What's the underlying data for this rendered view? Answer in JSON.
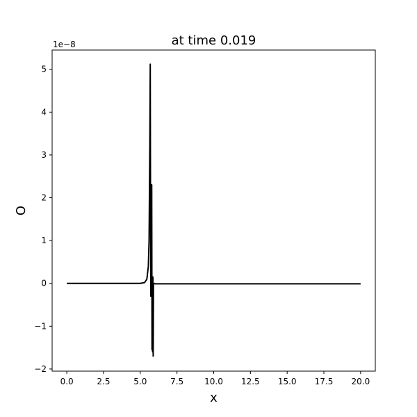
{
  "chart_data": {
    "type": "line",
    "title": "at time 0.019",
    "xlabel": "x",
    "ylabel": "O",
    "offset_label": "1e−8",
    "xlim": [
      -1.0,
      21.0
    ],
    "ylim": [
      -2.05,
      5.45
    ],
    "y_scale_exponent": -8,
    "xticks": [
      0.0,
      2.5,
      5.0,
      7.5,
      10.0,
      12.5,
      15.0,
      17.5,
      20.0
    ],
    "xtick_labels": [
      "0.0",
      "2.5",
      "5.0",
      "7.5",
      "10.0",
      "12.5",
      "15.0",
      "17.5",
      "20.0"
    ],
    "yticks": [
      -2,
      -1,
      0,
      1,
      2,
      3,
      4,
      5
    ],
    "ytick_labels": [
      "−2",
      "−1",
      "0",
      "1",
      "2",
      "3",
      "4",
      "5"
    ],
    "grid": false,
    "series": [
      {
        "color": "#000000",
        "x": [
          0.0,
          5.0,
          5.3,
          5.45,
          5.55,
          5.6,
          5.65,
          5.68,
          5.7,
          5.72,
          5.74,
          5.76,
          5.78,
          5.8,
          5.82,
          5.84,
          5.86,
          5.88,
          5.9,
          5.95,
          6.0,
          10.0,
          15.0,
          20.0
        ],
        "y": [
          0.0,
          0.0,
          0.02,
          0.1,
          0.4,
          1.0,
          3.2,
          5.12,
          1.5,
          -0.3,
          2.3,
          -0.3,
          2.3,
          -1.55,
          0.1,
          -1.6,
          0.15,
          -1.7,
          0.0,
          0.0,
          -0.01,
          -0.01,
          -0.01,
          -0.01
        ]
      }
    ]
  }
}
